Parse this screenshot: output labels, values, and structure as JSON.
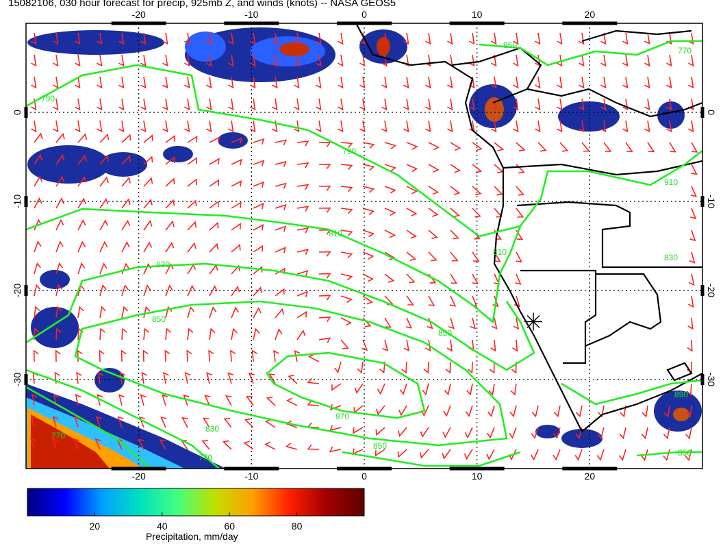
{
  "title": "15082106, 030 hour forecast for precip, 925mb Z, and winds (knots) -- NASA GEOS5",
  "map": {
    "lon_range": [
      -30,
      30
    ],
    "lat_range": [
      -40,
      10
    ],
    "lon_tick_labels": [
      "-20",
      "-10",
      "0",
      "10",
      "20"
    ],
    "lat_tick_labels": [
      "0",
      "-10",
      "-20",
      "-30"
    ],
    "gridlines": "dotted, every 10 degrees",
    "marker": {
      "symbol": "asterisk",
      "lon": 15,
      "lat": -23.5
    }
  },
  "contours": {
    "field": "925mb geopotential height",
    "labels": [
      "770",
      "790",
      "810",
      "830",
      "850",
      "870",
      "890",
      "910"
    ],
    "color": "#22dd22"
  },
  "wind_barbs": {
    "units": "knots",
    "color": "#ff2020"
  },
  "colorbar": {
    "label": "Precipitation, mm/day",
    "tick_labels": [
      "20",
      "40",
      "60",
      "80"
    ],
    "range": [
      0,
      100
    ],
    "colors": [
      "#000080",
      "#0000ff",
      "#00a0ff",
      "#00e0c0",
      "#40ff80",
      "#c0e000",
      "#ffa000",
      "#ff2000",
      "#a00000",
      "#600000"
    ]
  }
}
